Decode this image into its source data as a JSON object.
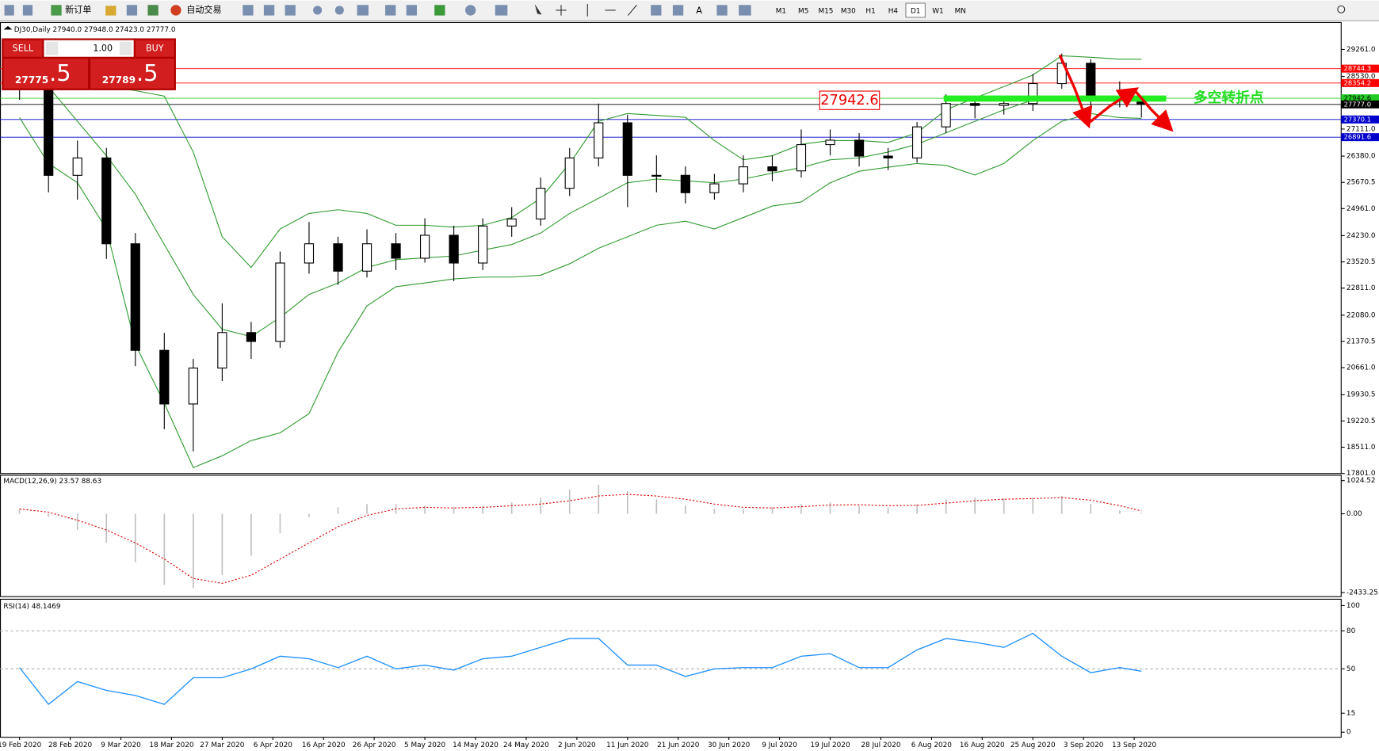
{
  "toolbar": {
    "new_order": "新订单",
    "auto_trading": "自动交易",
    "timeframes": [
      "M1",
      "M5",
      "M15",
      "M30",
      "H1",
      "H4",
      "D1",
      "W1",
      "MN"
    ],
    "active_timeframe": "D1"
  },
  "trade_panel": {
    "sell": "SELL",
    "buy": "BUY",
    "lots": "1.00",
    "sell_price": "27775",
    "sell_price_frac": ".5",
    "buy_price": "27789",
    "buy_price_frac": ".5"
  },
  "chart_data": [
    {
      "type": "candlestick",
      "title": "DJ30,Daily 27940.0 27948.0 27423.0 27777.0",
      "x": [
        0,
        4,
        8,
        12,
        16,
        20,
        24,
        28,
        32,
        36,
        40,
        44,
        48,
        52,
        56,
        60,
        64,
        68,
        72,
        76,
        80,
        84,
        88,
        92,
        96,
        100,
        104,
        108,
        112,
        116,
        120,
        124,
        128,
        132,
        136,
        140,
        144,
        148,
        152,
        155
      ],
      "open": [
        29000,
        28230,
        25860,
        26330,
        24010,
        21130,
        19680,
        20650,
        21610,
        21370,
        23490,
        24010,
        23270,
        24010,
        23620,
        24240,
        23490,
        24490,
        24680,
        25510,
        26330,
        27280,
        25860,
        25860,
        25390,
        25630,
        26090,
        25980,
        26690,
        26810,
        26380,
        26330,
        27170,
        27800,
        27750,
        27800,
        28340,
        28890,
        27880,
        27940
      ],
      "high": [
        29350,
        28600,
        26800,
        26600,
        24300,
        21600,
        20900,
        22400,
        21900,
        23800,
        24600,
        24200,
        24400,
        24300,
        24700,
        24500,
        24700,
        25000,
        25800,
        26600,
        27800,
        27500,
        26400,
        26100,
        25900,
        26400,
        26400,
        27100,
        27100,
        27000,
        26600,
        27300,
        28050,
        28000,
        28000,
        28600,
        29150,
        29000,
        28400,
        27948
      ],
      "low": [
        27900,
        25400,
        25200,
        23600,
        20700,
        19000,
        18400,
        20300,
        20900,
        21200,
        23200,
        22900,
        23100,
        23300,
        23500,
        23000,
        23300,
        24200,
        24500,
        25300,
        26100,
        25000,
        25400,
        25100,
        25200,
        25400,
        25700,
        25800,
        26400,
        26100,
        26000,
        26200,
        27000,
        27400,
        27500,
        27600,
        28200,
        27600,
        27700,
        27423
      ],
      "close": [
        28230,
        25860,
        26330,
        24010,
        21130,
        19680,
        20650,
        21610,
        21370,
        23490,
        24010,
        23270,
        24010,
        23620,
        24240,
        23490,
        24490,
        24680,
        25510,
        26330,
        27280,
        25860,
        25860,
        25390,
        25630,
        26090,
        25980,
        26690,
        26810,
        26380,
        26330,
        27170,
        27800,
        27750,
        27800,
        28340,
        28890,
        27880,
        28000,
        27777
      ],
      "bands": {
        "color": "#2f9a2f",
        "upper": [
          29500,
          28880,
          28570,
          28260,
          28150,
          28000,
          26490,
          24200,
          23370,
          24410,
          24830,
          24930,
          24830,
          24510,
          24510,
          24460,
          24510,
          24720,
          25240,
          26180,
          27320,
          27530,
          27480,
          27430,
          26800,
          26280,
          26390,
          26700,
          26800,
          26800,
          26750,
          27010,
          27630,
          27950,
          28260,
          28570,
          29090,
          29050,
          29000,
          29000
        ],
        "middle": [
          28460,
          28250,
          27320,
          26390,
          25350,
          23990,
          22640,
          21700,
          21500,
          22020,
          22640,
          22950,
          23370,
          23580,
          23630,
          23680,
          23840,
          23990,
          24300,
          24830,
          25240,
          25660,
          25760,
          25710,
          25660,
          25760,
          25920,
          26070,
          26280,
          26330,
          26490,
          26700,
          27010,
          27320,
          27630,
          27900,
          28000,
          28000,
          28000,
          28000
        ],
        "lower": [
          27420,
          26180,
          25660,
          24410,
          21290,
          19700,
          17960,
          18280,
          18690,
          18900,
          19420,
          21080,
          22330,
          22850,
          22950,
          23060,
          23110,
          23110,
          23160,
          23470,
          23890,
          24200,
          24510,
          24620,
          24410,
          24720,
          25030,
          25140,
          25660,
          25970,
          26080,
          26180,
          26130,
          25870,
          26180,
          26800,
          27320,
          27530,
          27420,
          27400
        ]
      },
      "levels": [
        {
          "value": 28744.3,
          "color": "#ff0000"
        },
        {
          "value": 28354.2,
          "color": "#ff0000"
        },
        {
          "value": 27942.6,
          "color": "#22cc22"
        },
        {
          "value": 27777,
          "label": "27777.0",
          "color": "#000000"
        },
        {
          "value": 27370.1,
          "color": "#0000cc"
        },
        {
          "value": 26891.6,
          "color": "#0000cc"
        }
      ],
      "annotations": [
        {
          "text": "27942.6"
        },
        {
          "text": "多空转折点"
        }
      ],
      "xlim": [
        -2.7,
        182.6
      ],
      "xticks": [
        {
          "value": 0,
          "label": "19 Feb 2020"
        },
        {
          "value": 7,
          "label": "28 Feb 2020"
        },
        {
          "value": 14,
          "label": "9 Mar 2020"
        },
        {
          "value": 21,
          "label": "18 Mar 2020"
        },
        {
          "value": 28,
          "label": "27 Mar 2020"
        },
        {
          "value": 35,
          "label": "6 Apr 2020"
        },
        {
          "value": 42,
          "label": "16 Apr 2020"
        },
        {
          "value": 49,
          "label": "26 Apr 2020"
        },
        {
          "value": 56,
          "label": "5 May 2020"
        },
        {
          "value": 63,
          "label": "14 May 2020"
        },
        {
          "value": 70,
          "label": "24 May 2020"
        },
        {
          "value": 77,
          "label": "2 Jun 2020"
        },
        {
          "value": 84,
          "label": "11 Jun 2020"
        },
        {
          "value": 91,
          "label": "21 Jun 2020"
        },
        {
          "value": 98,
          "label": "30 Jun 2020"
        },
        {
          "value": 105,
          "label": "9 Jul 2020"
        },
        {
          "value": 112,
          "label": "19 Jul 2020"
        },
        {
          "value": 119,
          "label": "28 Jul 2020"
        },
        {
          "value": 126,
          "label": "6 Aug 2020"
        },
        {
          "value": 133,
          "label": "16 Aug 2020"
        },
        {
          "value": 140,
          "label": "25 Aug 2020"
        },
        {
          "value": 147,
          "label": "3 Sep 2020"
        },
        {
          "value": 154,
          "label": "13 Sep 2020"
        }
      ],
      "ylim": [
        17800,
        29990
      ],
      "yticks": [
        {
          "value": 29261,
          "label": "29261.0"
        },
        {
          "value": 28530,
          "label": "28530.0"
        },
        {
          "value": 27111,
          "label": "27111.0"
        },
        {
          "value": 26380,
          "label": "26380.0"
        },
        25670.5,
        {
          "value": 24961,
          "label": "24961.0"
        },
        {
          "value": 24230,
          "label": "24230.0"
        },
        23520.5,
        {
          "value": 22811,
          "label": "22811.0"
        },
        {
          "value": 22080,
          "label": "22080.0"
        },
        21370.5,
        {
          "value": 20661,
          "label": "20661.0"
        },
        19930.5,
        19220.5,
        {
          "value": 18511,
          "label": "18511.0"
        },
        {
          "value": 17801,
          "label": "17801.0"
        }
      ]
    },
    {
      "type": "macd",
      "title": "MACD(12,26,9) 23.57 88.63",
      "color": "#c0c0c0",
      "signal_color": "#dd0000",
      "values": [
        150,
        -100,
        -500,
        -900,
        -1500,
        -2200,
        -2300,
        -1900,
        -1300,
        -600,
        -100,
        200,
        300,
        300,
        250,
        200,
        250,
        350,
        500,
        750,
        900,
        700,
        450,
        250,
        150,
        150,
        200,
        300,
        350,
        250,
        200,
        300,
        450,
        500,
        480,
        500,
        550,
        300,
        100,
        23.57
      ],
      "signal": [
        150,
        50,
        -200,
        -500,
        -900,
        -1400,
        -2000,
        -2150,
        -1900,
        -1400,
        -900,
        -400,
        -50,
        150,
        200,
        180,
        200,
        250,
        300,
        400,
        550,
        600,
        550,
        450,
        300,
        200,
        180,
        220,
        270,
        280,
        250,
        260,
        330,
        400,
        450,
        470,
        500,
        420,
        250,
        88.63
      ],
      "ylim": [
        -2560,
        1190
      ],
      "yticks": [
        1024.52,
        {
          "value": 0,
          "label": "0.00"
        },
        -2433.25
      ]
    },
    {
      "type": "line",
      "title": "RSI(14) 48.1469",
      "color": "#1e90ff",
      "values": [
        51,
        22,
        40,
        33,
        29,
        22,
        43,
        43,
        50,
        60,
        58,
        51,
        60,
        50,
        53,
        49,
        58,
        60,
        67,
        74,
        74,
        53,
        53,
        44,
        50,
        51,
        51,
        60,
        62,
        51,
        51,
        65,
        74,
        71,
        67,
        78,
        60,
        47,
        51,
        48.1469
      ],
      "ylim": [
        -4,
        105
      ],
      "yticks": [
        100,
        80,
        50,
        15,
        0
      ],
      "levels": [
        80,
        50
      ]
    }
  ]
}
